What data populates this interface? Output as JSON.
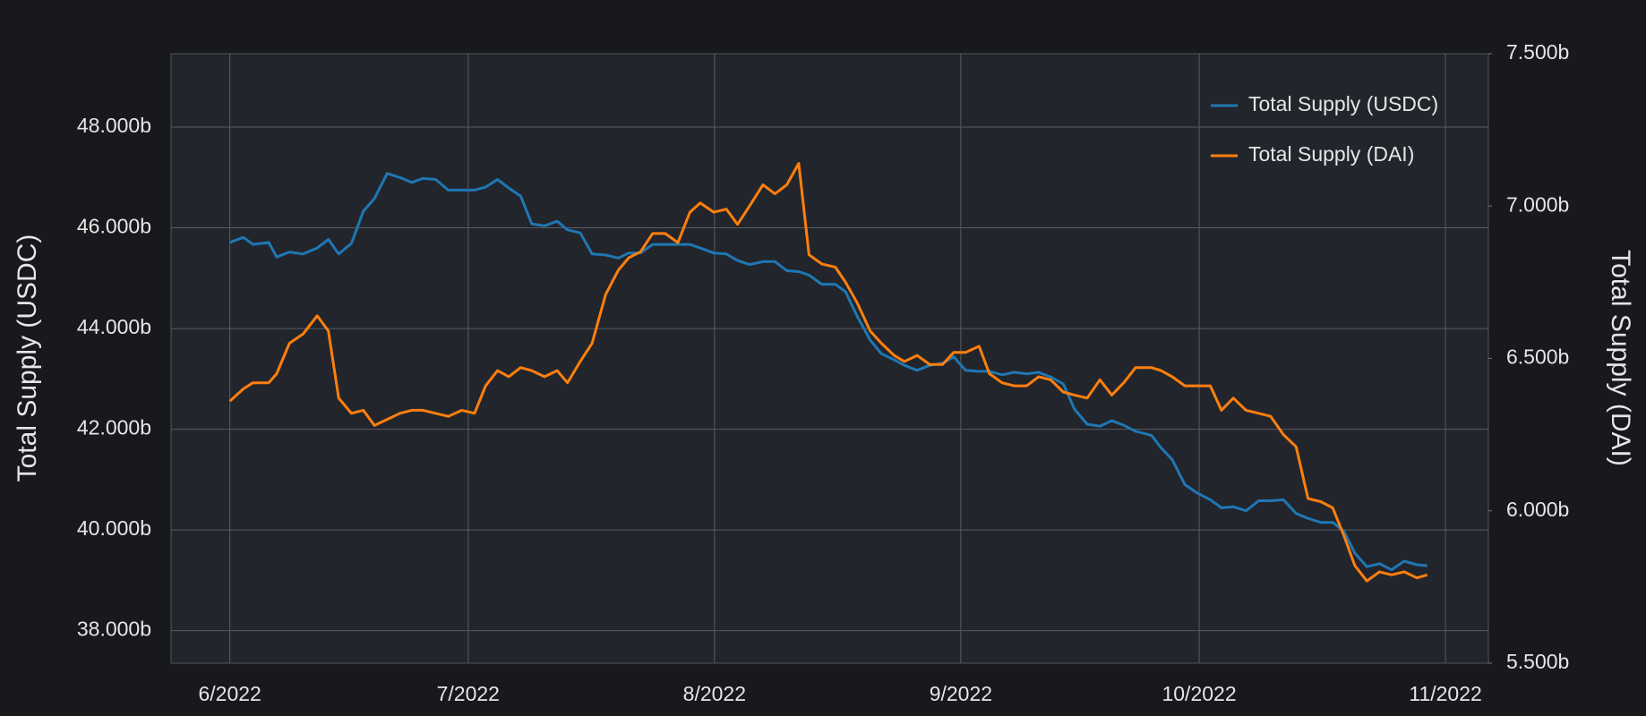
{
  "chart_data": {
    "type": "line",
    "y_label": "Total Supply (USDC)",
    "y2_label": "Total Supply (DAI)",
    "x": [
      0,
      1.7,
      2.9,
      4.9,
      5.9,
      7.5,
      9.2,
      11,
      12.4,
      13.7,
      15.3,
      16.8,
      18.2,
      19.8,
      21.4,
      22.9,
      24.3,
      25.9,
      27.5,
      29.2,
      30.8,
      32.2,
      33.7,
      35.1,
      36.6,
      38,
      39.6,
      41.2,
      42.5,
      44.1,
      45.6,
      47.3,
      48.9,
      50.2,
      51.7,
      53.2,
      54.8,
      56.4,
      57.9,
      59.2,
      60.9,
      62.5,
      63.9,
      65.4,
      67.1,
      68.6,
      70.1,
      71.6,
      72.9,
      74.5,
      76.2,
      77.5,
      79,
      80.6,
      82,
      83.6,
      84.9,
      86.5,
      88.1,
      89.7,
      91.1,
      92.6,
      94.3,
      95.6,
      97.2,
      98.7,
      100.3,
      101.8,
      103.3,
      104.9,
      106.3,
      107.9,
      109.5,
      111,
      112.5,
      114,
      116,
      117.2,
      118.6,
      120.2,
      121.8,
      123.4,
      124.8,
      126.3,
      127.9,
      129.5,
      131,
      132.6,
      134.2,
      135.7,
      137.3,
      138.8,
      140.2,
      141.6,
      143.1,
      144.7,
      146.2,
      147.8,
      149.4,
      150.7
    ],
    "series": [
      {
        "name": "Total Supply (USDC)",
        "color": "#1f77b4",
        "axis": "y",
        "values": [
          45.71,
          45.81,
          45.67,
          45.71,
          45.42,
          45.52,
          45.48,
          45.6,
          45.77,
          45.48,
          45.69,
          46.33,
          46.58,
          47.08,
          47.0,
          46.9,
          46.98,
          46.96,
          46.75,
          46.75,
          46.75,
          46.81,
          46.96,
          46.79,
          46.63,
          46.08,
          46.04,
          46.13,
          45.96,
          45.9,
          45.48,
          45.46,
          45.4,
          45.5,
          45.5,
          45.67,
          45.67,
          45.67,
          45.67,
          45.6,
          45.5,
          45.48,
          45.35,
          45.27,
          45.33,
          45.33,
          45.15,
          45.13,
          45.06,
          44.88,
          44.88,
          44.73,
          44.23,
          43.77,
          43.5,
          43.38,
          43.27,
          43.17,
          43.27,
          43.31,
          43.44,
          43.17,
          43.15,
          43.15,
          43.08,
          43.13,
          43.1,
          43.13,
          43.04,
          42.9,
          42.4,
          42.1,
          42.06,
          42.17,
          42.08,
          41.96,
          41.88,
          41.63,
          41.4,
          40.9,
          40.73,
          40.6,
          40.44,
          40.46,
          40.38,
          40.58,
          40.58,
          40.6,
          40.33,
          40.23,
          40.15,
          40.15,
          39.98,
          39.54,
          39.27,
          39.33,
          39.21,
          39.38,
          39.31,
          39.29
        ]
      },
      {
        "name": "Total Supply (DAI)",
        "color": "#ff7f0e",
        "axis": "y2",
        "values": [
          6.36,
          6.4,
          6.42,
          6.42,
          6.45,
          6.55,
          6.58,
          6.64,
          6.59,
          6.37,
          6.32,
          6.33,
          6.28,
          6.3,
          6.32,
          6.33,
          6.33,
          6.32,
          6.31,
          6.33,
          6.32,
          6.41,
          6.46,
          6.44,
          6.47,
          6.46,
          6.44,
          6.46,
          6.42,
          6.49,
          6.55,
          6.71,
          6.79,
          6.83,
          6.85,
          6.91,
          6.91,
          6.88,
          6.98,
          7.01,
          6.98,
          6.99,
          6.94,
          7.0,
          7.07,
          7.04,
          7.07,
          7.14,
          6.84,
          6.81,
          6.8,
          6.75,
          6.68,
          6.59,
          6.55,
          6.51,
          6.49,
          6.51,
          6.48,
          6.48,
          6.52,
          6.52,
          6.54,
          6.45,
          6.42,
          6.41,
          6.41,
          6.44,
          6.43,
          6.39,
          6.38,
          6.37,
          6.43,
          6.38,
          6.42,
          6.47,
          6.47,
          6.46,
          6.44,
          6.41,
          6.41,
          6.41,
          6.33,
          6.37,
          6.33,
          6.32,
          6.31,
          6.25,
          6.21,
          6.04,
          6.03,
          6.01,
          5.92,
          5.82,
          5.77,
          5.8,
          5.79,
          5.8,
          5.78,
          5.79
        ]
      }
    ],
    "xlim": [
      -7.4,
      158.4
    ],
    "xticks": [
      {
        "value": 0,
        "label": "6/2022"
      },
      {
        "value": 30,
        "label": "7/2022"
      },
      {
        "value": 61,
        "label": "8/2022"
      },
      {
        "value": 92,
        "label": "9/2022"
      },
      {
        "value": 122,
        "label": "10/2022"
      },
      {
        "value": 153,
        "label": "11/2022"
      }
    ],
    "ylim": [
      37.354,
      49.458
    ],
    "yticks": [
      {
        "value": 38,
        "label": "38.000b"
      },
      {
        "value": 40,
        "label": "40.000b"
      },
      {
        "value": 42,
        "label": "42.000b"
      },
      {
        "value": 44,
        "label": "44.000b"
      },
      {
        "value": 46,
        "label": "46.000b"
      },
      {
        "value": 48,
        "label": "48.000b"
      }
    ],
    "y2lim": [
      5.5,
      7.5
    ],
    "y2ticks": [
      {
        "value": 5.5,
        "label": "5.500b"
      },
      {
        "value": 6,
        "label": "6.000b"
      },
      {
        "value": 6.5,
        "label": "6.500b"
      },
      {
        "value": 7,
        "label": "7.000b"
      },
      {
        "value": 7.5,
        "label": "7.500b"
      }
    ],
    "grid": true,
    "legend": "upper right"
  }
}
